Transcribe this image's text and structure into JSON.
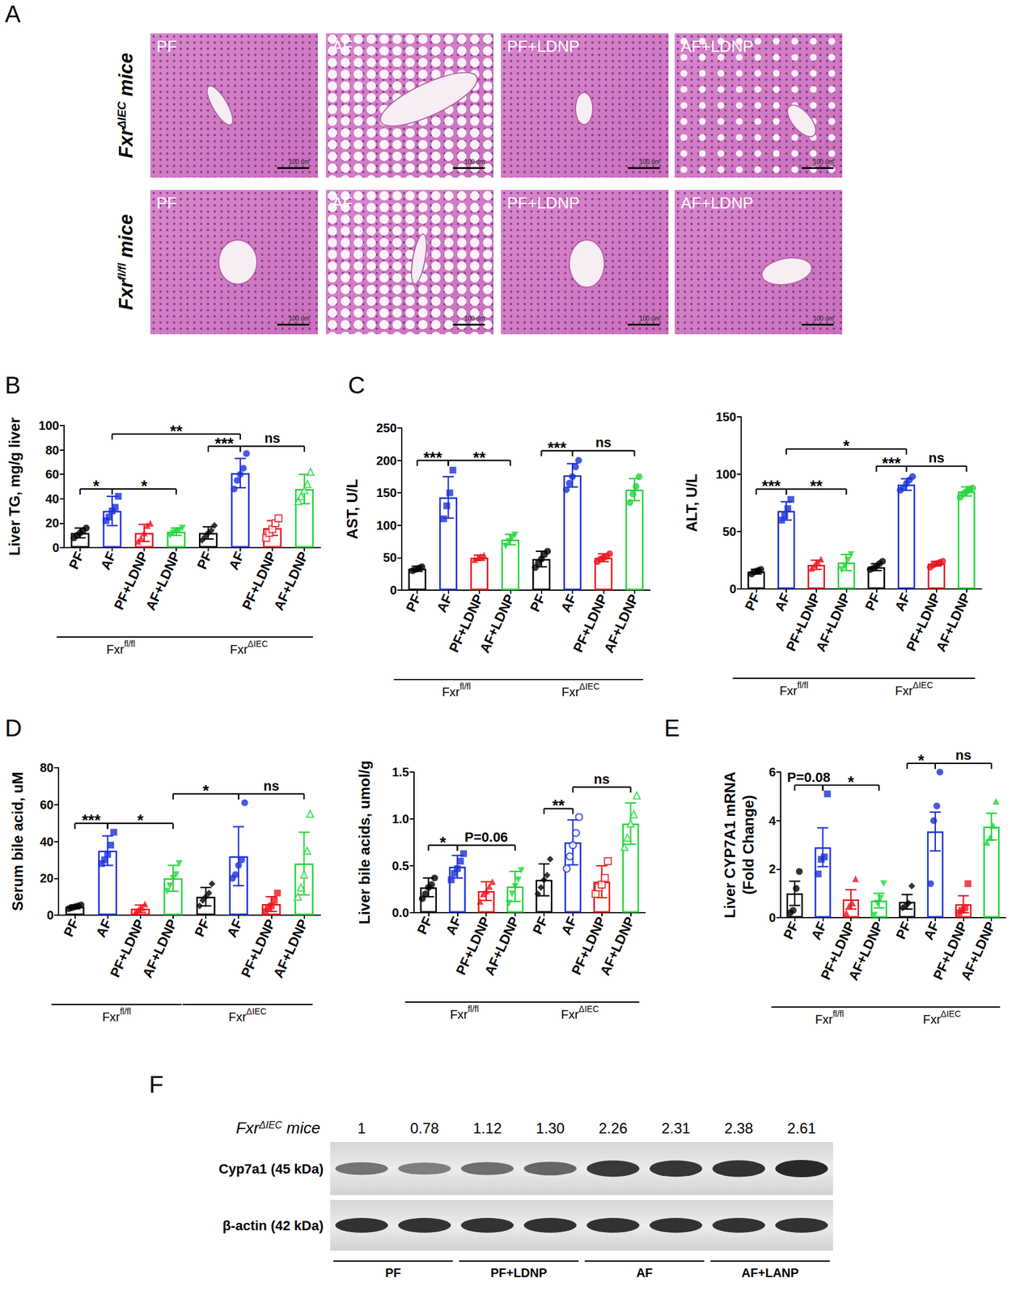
{
  "panel_labels": [
    "A",
    "B",
    "C",
    "D",
    "E",
    "F"
  ],
  "histology": {
    "rows": [
      {
        "name": "Fxr",
        "superscript": "ΔIEC",
        "suffix": " mice",
        "panels": [
          "PF",
          "AF",
          "PF+LDNP",
          "AF+LDNP"
        ]
      },
      {
        "name": "Fxr",
        "superscript": "fl/fl",
        "suffix": " mice",
        "panels": [
          "PF",
          "AF",
          "PF+LDNP",
          "AF+LDNP"
        ]
      }
    ],
    "scale_bar": "100 um"
  },
  "chart_data": [
    {
      "type": "bar",
      "y_label": "Liver TG, mg/g liver",
      "categories": [
        "PF",
        "AF",
        "PF+LDNP",
        "AF+LDNP",
        "PF",
        "AF",
        "PF+LDNP",
        "AF+LDNP"
      ],
      "groups": [
        {
          "name": "Fxr",
          "superscript": "fl/fl",
          "span": [
            0,
            3
          ]
        },
        {
          "name": "Fxr",
          "superscript": "ΔIEC",
          "span": [
            4,
            7
          ]
        }
      ],
      "values": [
        12,
        30,
        12,
        13,
        12,
        61,
        16,
        48
      ],
      "errors": [
        4,
        12,
        7,
        3,
        5,
        12,
        6,
        12
      ],
      "points": [
        [
          8,
          10,
          12,
          14,
          16
        ],
        [
          22,
          25,
          30,
          33,
          42
        ],
        [
          5,
          8,
          12,
          18,
          20
        ],
        [
          10,
          12,
          13,
          14,
          16
        ],
        [
          6,
          9,
          12,
          14,
          18
        ],
        [
          48,
          55,
          60,
          65,
          77
        ],
        [
          8,
          12,
          15,
          20,
          24
        ],
        [
          38,
          42,
          47,
          52,
          62
        ]
      ],
      "colors": [
        "#000000",
        "#1a2fd6",
        "#e8161e",
        "#22d43a",
        "#000000",
        "#1a2fd6",
        "#e8161e",
        "#22d43a"
      ],
      "markers": [
        "circle",
        "square",
        "triangle",
        "triangle-down",
        "diamond",
        "circle",
        "square-open",
        "triangle-open"
      ],
      "ylim": [
        0,
        100
      ],
      "yticks": [
        0,
        20,
        40,
        60,
        80,
        100
      ],
      "grid": false,
      "annotations": [
        {
          "from": 0,
          "to": 1,
          "label": "*"
        },
        {
          "from": 1,
          "to": 3,
          "label": "*"
        },
        {
          "from": 4,
          "to": 5,
          "label": "***"
        },
        {
          "from": 5,
          "to": 7,
          "label": "ns"
        },
        {
          "from": 1,
          "to": 5,
          "label": "**"
        }
      ]
    },
    {
      "type": "bar",
      "y_label": "AST, U/L",
      "categories": [
        "PF",
        "AF",
        "PF+LDNP",
        "AF+LDNP",
        "PF",
        "AF",
        "PF+LDNP",
        "AF+LDNP"
      ],
      "groups": [
        {
          "name": "Fxr",
          "superscript": "fl/fl",
          "span": [
            0,
            3
          ]
        },
        {
          "name": "Fxr",
          "superscript": "ΔIEC",
          "span": [
            4,
            7
          ]
        }
      ],
      "values": [
        33,
        143,
        50,
        78,
        48,
        177,
        50,
        155
      ],
      "errors": [
        4,
        32,
        4,
        8,
        12,
        18,
        6,
        17
      ],
      "points": [
        [
          30,
          32,
          34,
          36
        ],
        [
          110,
          130,
          150,
          185
        ],
        [
          47,
          50,
          52,
          54
        ],
        [
          68,
          75,
          80,
          85
        ],
        [
          35,
          42,
          48,
          55,
          60
        ],
        [
          155,
          165,
          175,
          190,
          200
        ],
        [
          44,
          48,
          50,
          52,
          56
        ],
        [
          135,
          148,
          160,
          175
        ]
      ],
      "colors": [
        "#000000",
        "#1a2fd6",
        "#e8161e",
        "#22d43a",
        "#000000",
        "#1a2fd6",
        "#e8161e",
        "#22d43a"
      ],
      "markers": [
        "circle",
        "square",
        "triangle",
        "triangle-down",
        "circle",
        "circle",
        "circle",
        "circle"
      ],
      "ylim": [
        0,
        250
      ],
      "yticks": [
        0,
        50,
        100,
        150,
        200,
        250
      ],
      "grid": false,
      "annotations": [
        {
          "from": 0,
          "to": 1,
          "label": "***"
        },
        {
          "from": 1,
          "to": 3,
          "label": "**"
        },
        {
          "from": 4,
          "to": 5,
          "label": "***"
        },
        {
          "from": 5,
          "to": 7,
          "label": "ns"
        }
      ]
    },
    {
      "type": "bar",
      "y_label": "ALT, U/L",
      "categories": [
        "PF",
        "AF",
        "PF+LDNP",
        "AF+LDNP",
        "PF",
        "AF",
        "PF+LDNP",
        "AF+LDNP"
      ],
      "groups": [
        {
          "name": "Fxr",
          "superscript": "fl/fl",
          "span": [
            0,
            3
          ]
        },
        {
          "name": "Fxr",
          "superscript": "ΔIEC",
          "span": [
            4,
            7
          ]
        }
      ],
      "values": [
        15,
        68,
        21,
        23,
        19,
        91,
        22,
        85
      ],
      "errors": [
        2,
        8,
        4,
        7,
        3,
        5,
        2,
        4
      ],
      "points": [
        [
          13,
          15,
          16,
          17
        ],
        [
          60,
          64,
          70,
          78
        ],
        [
          18,
          21,
          23,
          26
        ],
        [
          17,
          20,
          25,
          30
        ],
        [
          17,
          18,
          20,
          22,
          24
        ],
        [
          86,
          88,
          92,
          95,
          98
        ],
        [
          19,
          21,
          22,
          23,
          24
        ],
        [
          80,
          83,
          85,
          87,
          88
        ]
      ],
      "colors": [
        "#000000",
        "#1a2fd6",
        "#e8161e",
        "#22d43a",
        "#000000",
        "#1a2fd6",
        "#e8161e",
        "#22d43a"
      ],
      "markers": [
        "circle",
        "square",
        "triangle",
        "triangle-down",
        "circle",
        "circle",
        "circle",
        "circle"
      ],
      "ylim": [
        0,
        150
      ],
      "yticks": [
        0,
        50,
        100,
        150
      ],
      "grid": false,
      "annotations": [
        {
          "from": 0,
          "to": 1,
          "label": "***"
        },
        {
          "from": 1,
          "to": 3,
          "label": "**"
        },
        {
          "from": 4,
          "to": 5,
          "label": "***"
        },
        {
          "from": 5,
          "to": 7,
          "label": "ns"
        },
        {
          "from": 1,
          "to": 5,
          "label": "*"
        }
      ]
    },
    {
      "type": "bar",
      "y_label": "Serum bile acid, uM",
      "categories": [
        "PF",
        "AF",
        "PF+LDNP",
        "AF+LDNP",
        "PF",
        "AF",
        "PF+LDNP",
        "AF+LDNP"
      ],
      "groups": [
        {
          "name": "Fxr",
          "superscript": "fl/fl",
          "span": [
            0,
            3
          ]
        },
        {
          "name": "Fxr",
          "superscript": "ΔIEC",
          "span": [
            4,
            7
          ]
        }
      ],
      "values": [
        4.5,
        35,
        3.5,
        20,
        10,
        32,
        6,
        28
      ],
      "errors": [
        1,
        8,
        2,
        7,
        5,
        16,
        4,
        17
      ],
      "points": [
        [
          3.5,
          4,
          4.5,
          5,
          5.5
        ],
        [
          28,
          30,
          33,
          38,
          45
        ],
        [
          2,
          3,
          4,
          6
        ],
        [
          13,
          16,
          20,
          22,
          28
        ],
        [
          5,
          8,
          10,
          12,
          17
        ],
        [
          20,
          22,
          27,
          30,
          61
        ],
        [
          2,
          4,
          5,
          8,
          12
        ],
        [
          10,
          15,
          22,
          35,
          55
        ]
      ],
      "colors": [
        "#000000",
        "#1a2fd6",
        "#e8161e",
        "#22d43a",
        "#000000",
        "#1a2fd6",
        "#e8161e",
        "#22d43a"
      ],
      "markers": [
        "circle",
        "square",
        "triangle",
        "triangle-down",
        "diamond",
        "circle",
        "square",
        "triangle-open"
      ],
      "ylim": [
        0,
        80
      ],
      "yticks": [
        0,
        20,
        40,
        60,
        80
      ],
      "grid": false,
      "annotations": [
        {
          "from": 0,
          "to": 1,
          "label": "***"
        },
        {
          "from": 1,
          "to": 3,
          "label": "*"
        },
        {
          "from": 3,
          "to": 5,
          "label": "*"
        },
        {
          "from": 5,
          "to": 7,
          "label": "ns"
        }
      ]
    },
    {
      "type": "bar",
      "y_label": "Liver bile acids, umol/g",
      "categories": [
        "PF",
        "AF",
        "PF+LDNP",
        "AF+LDNP",
        "PF",
        "AF",
        "PF+LDNP",
        "AF+LDNP"
      ],
      "groups": [
        {
          "name": "Fxr",
          "superscript": "fl/fl",
          "span": [
            0,
            3
          ]
        },
        {
          "name": "Fxr",
          "superscript": "ΔIEC",
          "span": [
            4,
            7
          ]
        }
      ],
      "values": [
        0.27,
        0.49,
        0.23,
        0.28,
        0.35,
        0.75,
        0.33,
        0.95
      ],
      "errors": [
        0.1,
        0.12,
        0.1,
        0.16,
        0.17,
        0.24,
        0.17,
        0.22
      ],
      "points": [
        [
          0.15,
          0.2,
          0.27,
          0.3,
          0.37
        ],
        [
          0.35,
          0.42,
          0.47,
          0.55,
          0.63
        ],
        [
          0.12,
          0.2,
          0.23,
          0.28,
          0.33
        ],
        [
          0.1,
          0.2,
          0.28,
          0.35,
          0.45
        ],
        [
          0.2,
          0.27,
          0.35,
          0.4,
          0.57
        ],
        [
          0.47,
          0.6,
          0.72,
          0.85,
          1.02
        ],
        [
          0.2,
          0.27,
          0.3,
          0.37,
          0.55
        ],
        [
          0.7,
          0.8,
          0.95,
          1.05,
          1.25
        ]
      ],
      "colors": [
        "#000000",
        "#1a2fd6",
        "#e8161e",
        "#22d43a",
        "#000000",
        "#1a2fd6",
        "#e8161e",
        "#22d43a"
      ],
      "markers": [
        "circle",
        "square",
        "triangle",
        "triangle-down",
        "diamond",
        "circle-open",
        "square-open",
        "triangle-open"
      ],
      "ylim": [
        0,
        1.5
      ],
      "yticks": [
        {
          "value": 0,
          "label": "0.0"
        },
        {
          "value": 0.5,
          "label": "0.5"
        },
        {
          "value": 1,
          "label": "1.0"
        },
        {
          "value": 1.5,
          "label": "1.5"
        }
      ],
      "grid": false,
      "annotations": [
        {
          "from": 0,
          "to": 1,
          "label": "*"
        },
        {
          "from": 1,
          "to": 3,
          "label": "P=0.06"
        },
        {
          "from": 4,
          "to": 5,
          "label": "**"
        },
        {
          "from": 5,
          "to": 7,
          "label": "ns"
        }
      ]
    },
    {
      "type": "bar",
      "y_label": "Liver CYP7A1 mRNA\n(Fold Change)",
      "categories": [
        "PF",
        "AF",
        "PF+LDNP",
        "AF+LDNP",
        "PF",
        "AF",
        "PF+LDNP",
        "AF+LDNP"
      ],
      "groups": [
        {
          "name": "Fxr",
          "superscript": "fl/fl",
          "span": [
            0,
            3
          ]
        },
        {
          "name": "Fxr",
          "superscript": "ΔIEC",
          "span": [
            4,
            7
          ]
        }
      ],
      "values": [
        1.0,
        2.9,
        0.75,
        0.7,
        0.65,
        3.55,
        0.55,
        3.75
      ],
      "errors": [
        0.5,
        0.8,
        0.4,
        0.3,
        0.3,
        0.8,
        0.35,
        0.55
      ],
      "points": [
        [
          0.2,
          0.3,
          1.2,
          1.9
        ],
        [
          1.8,
          2.4,
          2.5,
          5.1
        ],
        [
          0.2,
          0.5,
          0.6,
          1.6
        ],
        [
          0.1,
          0.6,
          0.8,
          1.4
        ],
        [
          0.4,
          0.5,
          0.6,
          1.3
        ],
        [
          1.4,
          4.0,
          4.6,
          6.0
        ],
        [
          0.2,
          0.3,
          0.4,
          1.4
        ],
        [
          3.1,
          3.3,
          3.8,
          4.8
        ]
      ],
      "colors": [
        "#000000",
        "#1a2fd6",
        "#e8161e",
        "#22d43a",
        "#000000",
        "#1a2fd6",
        "#e8161e",
        "#22d43a"
      ],
      "markers": [
        "circle",
        "square",
        "triangle",
        "triangle-down",
        "diamond",
        "circle",
        "square",
        "triangle"
      ],
      "ylim": [
        0,
        6
      ],
      "yticks": [
        0,
        2,
        4,
        6
      ],
      "grid": false,
      "annotations": [
        {
          "from": 0,
          "to": 1,
          "label": "P=0.08"
        },
        {
          "from": 1,
          "to": 3,
          "label": "*"
        },
        {
          "from": 4,
          "to": 5,
          "label": "*"
        },
        {
          "from": 5,
          "to": 7,
          "label": "ns"
        }
      ]
    }
  ],
  "western_blot": {
    "row_label": {
      "name": "Fxr",
      "superscript": "ΔIEC",
      "suffix": " mice"
    },
    "densities": [
      1,
      0.78,
      1.12,
      1.3,
      2.26,
      2.31,
      2.38,
      2.61
    ],
    "density_labels": [
      "1",
      "0.78",
      "1.12",
      "1.30",
      "2.26",
      "2.31",
      "2.38",
      "2.61"
    ],
    "bands": [
      "Cyp7a1 (45 kDa)",
      "β-actin (42 kDa)"
    ],
    "lane_groups": [
      "PF",
      "PF+LDNP",
      "AF",
      "AF+LANP"
    ]
  }
}
